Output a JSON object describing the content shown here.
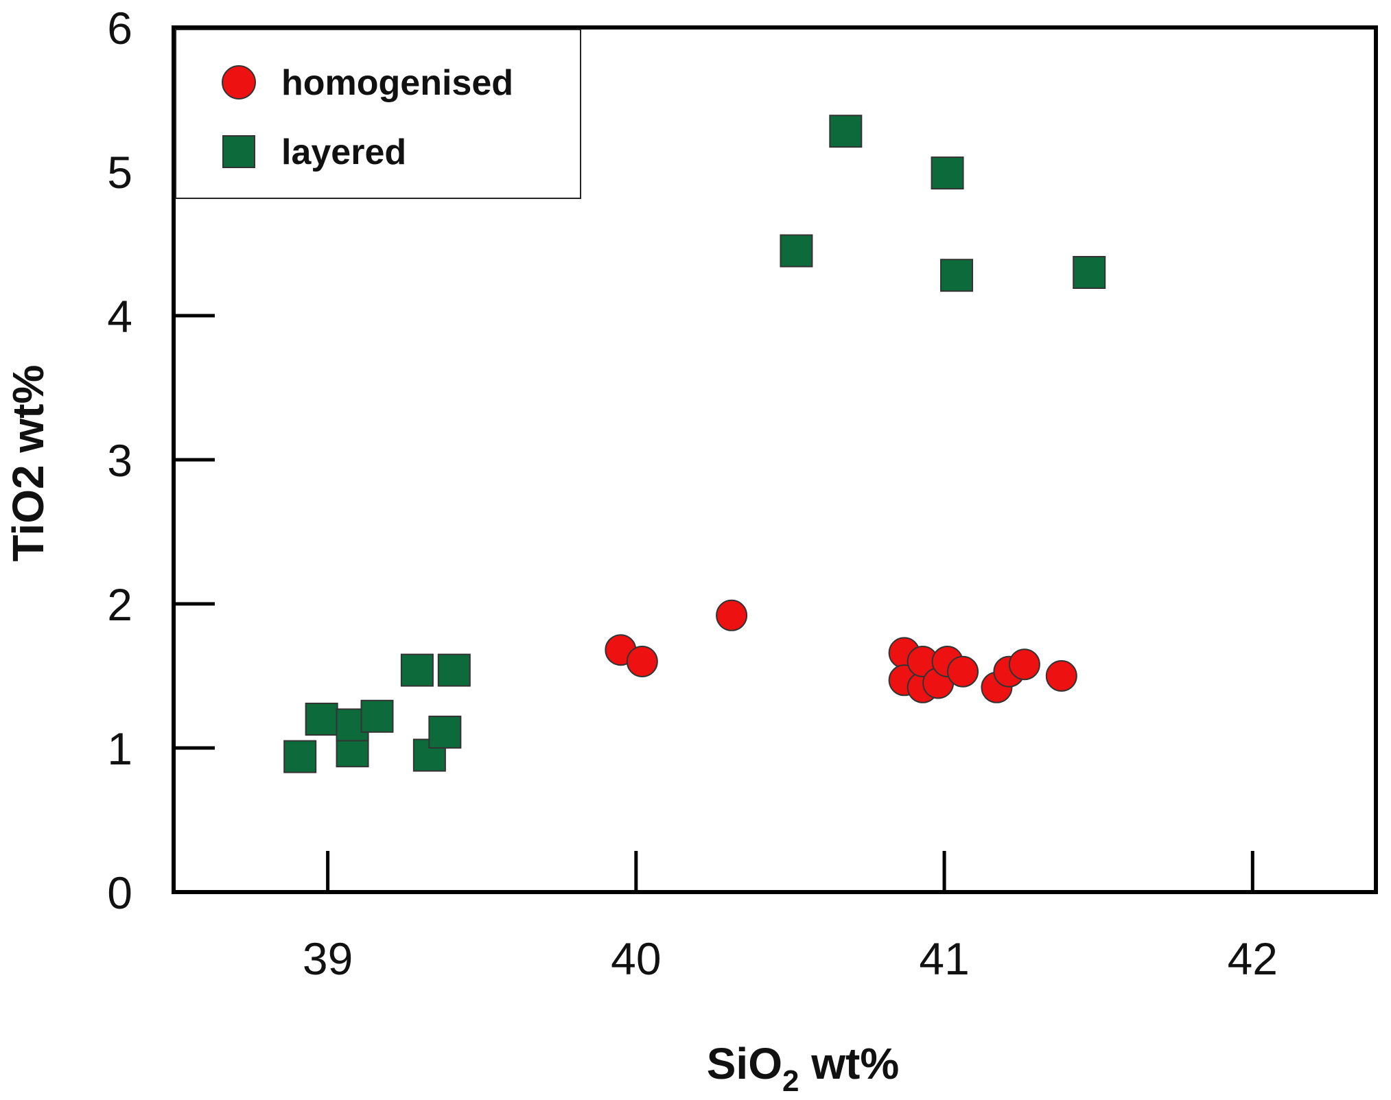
{
  "chart_data": {
    "type": "scatter",
    "title": "",
    "xlabel": "SiO",
    "xlabel_subscript": "2",
    "xlabel_suffix": " wt%",
    "ylabel": "TiO2 wt%",
    "xlim": [
      38.5,
      42.4
    ],
    "ylim": [
      0,
      6
    ],
    "xticks": [
      39,
      40,
      41,
      42
    ],
    "yticks": [
      0,
      1,
      2,
      3,
      4,
      5,
      6
    ],
    "grid": false,
    "legend_position": "top-left",
    "series": [
      {
        "name": "homogenised",
        "marker": "circle",
        "color": "#ee1111",
        "points": [
          {
            "x": 39.95,
            "y": 1.68
          },
          {
            "x": 40.02,
            "y": 1.6
          },
          {
            "x": 40.31,
            "y": 1.92
          },
          {
            "x": 40.87,
            "y": 1.66
          },
          {
            "x": 40.87,
            "y": 1.47
          },
          {
            "x": 40.93,
            "y": 1.42
          },
          {
            "x": 40.93,
            "y": 1.6
          },
          {
            "x": 40.98,
            "y": 1.45
          },
          {
            "x": 41.01,
            "y": 1.6
          },
          {
            "x": 41.06,
            "y": 1.53
          },
          {
            "x": 41.17,
            "y": 1.42
          },
          {
            "x": 41.21,
            "y": 1.53
          },
          {
            "x": 41.26,
            "y": 1.58
          },
          {
            "x": 41.38,
            "y": 1.5
          }
        ]
      },
      {
        "name": "layered",
        "marker": "square",
        "color": "#0d6b3b",
        "points": [
          {
            "x": 38.91,
            "y": 0.94
          },
          {
            "x": 38.98,
            "y": 1.2
          },
          {
            "x": 39.08,
            "y": 0.98
          },
          {
            "x": 39.08,
            "y": 1.16
          },
          {
            "x": 39.16,
            "y": 1.22
          },
          {
            "x": 39.29,
            "y": 1.54
          },
          {
            "x": 39.33,
            "y": 0.95
          },
          {
            "x": 39.38,
            "y": 1.11
          },
          {
            "x": 39.41,
            "y": 1.54
          },
          {
            "x": 40.52,
            "y": 4.45
          },
          {
            "x": 40.68,
            "y": 5.28
          },
          {
            "x": 41.01,
            "y": 4.99
          },
          {
            "x": 41.04,
            "y": 4.28
          },
          {
            "x": 41.47,
            "y": 4.3
          }
        ]
      }
    ]
  }
}
